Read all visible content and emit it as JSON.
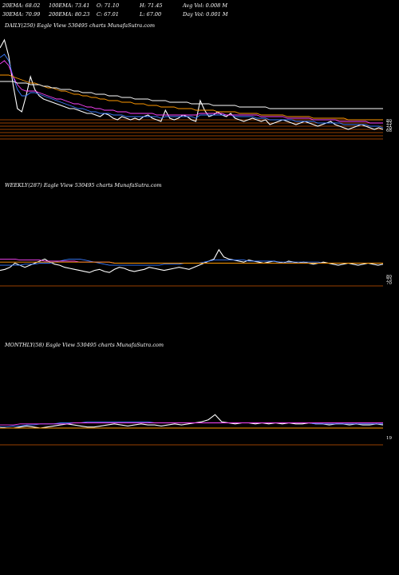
{
  "header": {
    "col1": [
      "20EMA: 68.02",
      "30EMA: 70.99"
    ],
    "col2": [
      "100EMA: 73.41",
      "200EMA: 80.23"
    ],
    "col3": [
      "O: 71.10",
      "C: 67.01"
    ],
    "col4": [
      "H: 71.45",
      "L: 67.00"
    ],
    "col5": [
      "Avg Vol: 0.008 M",
      "Day Vol: 0.001 M"
    ]
  },
  "panels": [
    {
      "id": "daily",
      "title": "DAILY(250) Eagle   View  530495 charts MunafaSutra.com"
    },
    {
      "id": "weekly",
      "title": "WEEKLY(287) Eagle   View  530495 charts MunafaSutra.com"
    },
    {
      "id": "monthly",
      "title": "MONTHLY(58) Eagle   View  530495 charts MunafaSutra.com"
    }
  ],
  "chart_data": [
    {
      "type": "line",
      "name": "DAILY(250)",
      "series": [
        {
          "key": "price",
          "color": "#ffffff",
          "values": [
            118,
            123,
            113,
            95,
            80,
            78,
            88,
            100,
            92,
            88,
            86,
            85,
            84,
            83,
            82,
            81,
            80,
            80,
            79,
            78,
            77,
            77,
            76,
            75,
            77,
            76,
            74,
            73,
            75,
            74,
            73,
            74,
            73,
            75,
            76,
            74,
            73,
            72,
            79,
            74,
            73,
            74,
            76,
            75,
            73,
            72,
            85,
            79,
            75,
            76,
            78,
            76,
            75,
            77,
            74,
            73,
            72,
            73,
            74,
            73,
            72,
            73,
            70,
            71,
            72,
            73,
            72,
            71,
            70,
            71,
            72,
            71,
            70,
            69,
            70,
            71,
            72,
            70,
            69,
            68,
            67,
            68,
            69,
            70,
            69,
            68,
            67,
            68,
            67
          ]
        },
        {
          "key": "ema20",
          "color": "#3a7bff",
          "values": [
            112,
            114,
            110,
            100,
            92,
            88,
            88,
            90,
            90,
            89,
            88,
            87,
            86,
            85,
            84,
            83,
            82,
            81,
            80,
            80,
            79,
            78,
            78,
            77,
            77,
            77,
            76,
            76,
            76,
            75,
            75,
            75,
            75,
            75,
            75,
            75,
            75,
            74,
            75,
            75,
            75,
            75,
            75,
            75,
            75,
            74,
            76,
            76,
            76,
            76,
            76,
            76,
            76,
            76,
            75,
            75,
            75,
            75,
            75,
            74,
            74,
            74,
            73,
            73,
            73,
            73,
            73,
            73,
            72,
            72,
            72,
            72,
            72,
            71,
            71,
            71,
            71,
            71,
            71,
            70,
            70,
            70,
            70,
            70,
            70,
            69,
            69,
            69,
            68
          ]
        },
        {
          "key": "ema30",
          "color": "#ff44ff",
          "values": [
            108,
            110,
            107,
            100,
            95,
            92,
            91,
            91,
            91,
            90,
            89,
            88,
            87,
            86,
            86,
            85,
            84,
            83,
            83,
            82,
            81,
            81,
            80,
            80,
            79,
            79,
            79,
            78,
            78,
            78,
            77,
            77,
            77,
            77,
            77,
            77,
            76,
            76,
            76,
            76,
            76,
            76,
            76,
            76,
            76,
            76,
            77,
            77,
            77,
            77,
            77,
            77,
            76,
            76,
            76,
            76,
            76,
            76,
            76,
            76,
            75,
            75,
            75,
            75,
            75,
            75,
            74,
            74,
            74,
            74,
            74,
            74,
            73,
            73,
            73,
            73,
            73,
            73,
            72,
            72,
            72,
            72,
            72,
            72,
            72,
            71,
            71,
            71,
            71
          ]
        },
        {
          "key": "ema100",
          "color": "#ff9900",
          "values": [
            101,
            101,
            101,
            100,
            99,
            98,
            97,
            96,
            96,
            95,
            94,
            93,
            93,
            92,
            91,
            91,
            90,
            89,
            89,
            88,
            88,
            87,
            87,
            86,
            86,
            85,
            85,
            85,
            84,
            84,
            84,
            83,
            83,
            83,
            82,
            82,
            82,
            81,
            81,
            81,
            81,
            80,
            80,
            80,
            80,
            79,
            79,
            79,
            79,
            79,
            78,
            78,
            78,
            78,
            78,
            77,
            77,
            77,
            77,
            77,
            76,
            76,
            76,
            76,
            76,
            76,
            75,
            75,
            75,
            75,
            75,
            75,
            74,
            74,
            74,
            74,
            74,
            74,
            74,
            74,
            73,
            73,
            73,
            73,
            73,
            73,
            73,
            73,
            73
          ]
        },
        {
          "key": "ema200",
          "color": "#ffffff",
          "values": [
            97,
            97,
            97,
            97,
            96,
            96,
            96,
            95,
            95,
            95,
            94,
            94,
            93,
            93,
            92,
            92,
            92,
            91,
            91,
            90,
            90,
            90,
            89,
            89,
            89,
            88,
            88,
            88,
            87,
            87,
            87,
            86,
            86,
            86,
            86,
            85,
            85,
            85,
            85,
            84,
            84,
            84,
            84,
            84,
            83,
            83,
            83,
            83,
            83,
            82,
            82,
            82,
            82,
            82,
            82,
            81,
            81,
            81,
            81,
            81,
            81,
            81,
            80,
            80,
            80,
            80,
            80,
            80,
            80,
            80,
            80,
            80,
            80,
            80,
            80,
            80,
            80,
            80,
            80,
            80,
            80,
            80,
            80,
            80,
            80,
            80,
            80,
            80,
            80
          ]
        }
      ],
      "hlines": [
        71.45,
        67.0,
        73.41,
        70.99,
        68.02,
        80.23
      ],
      "tick_labels": [
        "80",
        "73",
        "71",
        "70",
        "68"
      ],
      "ylim": [
        60,
        125
      ]
    },
    {
      "type": "line",
      "name": "WEEKLY(287)",
      "series": [
        {
          "key": "price",
          "color": "#ffffff",
          "values": [
            55,
            56,
            58,
            62,
            60,
            58,
            60,
            62,
            64,
            66,
            63,
            61,
            60,
            58,
            57,
            56,
            55,
            54,
            53,
            55,
            56,
            54,
            53,
            56,
            58,
            57,
            55,
            54,
            55,
            56,
            58,
            57,
            56,
            55,
            56,
            57,
            58,
            57,
            56,
            58,
            60,
            62,
            64,
            66,
            75,
            68,
            66,
            65,
            64,
            63,
            65,
            64,
            63,
            62,
            63,
            64,
            63,
            62,
            64,
            63,
            62,
            63,
            62,
            61,
            62,
            63,
            62,
            61,
            60,
            61,
            62,
            61,
            60,
            61,
            62,
            61,
            60,
            61
          ]
        },
        {
          "key": "ema20",
          "color": "#3a7bff",
          "values": [
            60,
            60,
            60,
            60,
            60,
            61,
            61,
            61,
            62,
            62,
            62,
            63,
            64,
            65,
            66,
            66,
            66,
            65,
            64,
            63,
            62,
            61,
            60,
            60,
            60,
            60,
            60,
            60,
            60,
            60,
            60,
            60,
            60,
            61,
            61,
            61,
            61,
            62,
            62,
            62,
            62,
            63,
            64,
            65,
            65,
            65,
            65,
            65,
            65,
            65,
            64,
            64,
            64,
            64,
            64,
            64,
            63,
            63,
            63,
            63,
            63,
            63,
            63,
            63,
            63,
            62,
            62,
            62,
            62,
            62,
            62,
            62,
            62,
            62,
            62,
            62,
            62,
            62
          ]
        },
        {
          "key": "ema30",
          "color": "#ff44ff",
          "values": [
            66,
            66,
            66,
            66,
            65,
            65,
            65,
            65,
            65,
            64,
            64,
            64,
            64,
            64,
            64,
            64,
            63,
            63,
            63,
            63,
            63,
            63,
            63,
            62,
            62,
            62,
            62,
            62,
            62,
            62,
            62,
            62,
            62,
            62,
            62,
            62,
            62,
            62,
            62,
            62,
            62,
            62,
            62,
            62,
            62,
            62,
            62,
            62,
            62,
            62,
            62,
            62,
            62,
            62,
            62,
            62,
            62,
            62,
            62,
            62,
            62,
            62,
            62,
            62,
            62,
            62,
            62,
            62,
            62,
            62,
            62,
            62,
            62,
            62,
            62,
            62,
            62,
            62
          ]
        },
        {
          "key": "ema100",
          "color": "#ff9900",
          "values": [
            63,
            63,
            63,
            63,
            63,
            63,
            63,
            63,
            63,
            63,
            63,
            63,
            63,
            63,
            63,
            63,
            63,
            63,
            63,
            63,
            63,
            63,
            63,
            62,
            62,
            62,
            62,
            62,
            62,
            62,
            62,
            62,
            62,
            62,
            62,
            62,
            62,
            62,
            62,
            62,
            62,
            62,
            62,
            62,
            62,
            62,
            62,
            62,
            62,
            62,
            62,
            62,
            62,
            62,
            62,
            62,
            62,
            62,
            62,
            62,
            62,
            62,
            62,
            62,
            62,
            62,
            62,
            62,
            62,
            62,
            62,
            62,
            62,
            62,
            62,
            62,
            62,
            62
          ]
        }
      ],
      "tick_labels": [
        "80",
        "73",
        "70"
      ],
      "ylim": [
        40,
        125
      ]
    },
    {
      "type": "line",
      "name": "MONTHLY(58)",
      "series": [
        {
          "key": "price",
          "color": "#ffffff",
          "values": [
            58,
            57,
            57,
            58,
            59,
            58,
            57,
            58,
            59,
            60,
            61,
            60,
            59,
            58,
            58,
            59,
            60,
            61,
            60,
            59,
            60,
            61,
            60,
            60,
            59,
            60,
            61,
            60,
            61,
            62,
            63,
            65,
            70,
            63,
            62,
            61,
            62,
            62,
            61,
            62,
            61,
            62,
            61,
            62,
            61,
            61,
            62,
            61,
            61,
            60,
            61,
            61,
            60,
            61,
            60,
            60,
            61,
            60
          ]
        },
        {
          "key": "ema20",
          "color": "#3a7bff",
          "values": [
            58,
            58,
            59,
            59,
            60,
            60,
            61,
            61,
            61,
            62,
            62,
            62,
            62,
            63,
            63,
            63,
            63,
            63,
            63,
            63,
            63,
            63,
            63,
            62,
            62,
            62,
            62,
            62,
            62,
            62,
            62,
            62,
            62,
            62,
            62,
            62,
            62,
            62,
            62,
            62,
            62,
            62,
            62,
            62,
            62,
            62,
            62,
            61,
            61,
            61,
            61,
            61,
            61,
            61,
            61,
            61,
            61,
            61
          ]
        },
        {
          "key": "ema30",
          "color": "#ff44ff",
          "values": [
            60,
            60,
            60,
            61,
            61,
            61,
            61,
            61,
            61,
            61,
            61,
            62,
            62,
            62,
            62,
            62,
            62,
            62,
            62,
            62,
            62,
            62,
            62,
            62,
            62,
            62,
            62,
            62,
            62,
            62,
            62,
            62,
            62,
            62,
            62,
            62,
            62,
            62,
            62,
            62,
            62,
            62,
            62,
            62,
            62,
            62,
            62,
            62,
            62,
            62,
            62,
            62,
            62,
            62,
            62,
            62,
            62,
            62
          ]
        },
        {
          "key": "ema100",
          "color": "#ff9900",
          "values": [
            57,
            57,
            57,
            57,
            57,
            57,
            57,
            57,
            57,
            57,
            57,
            57,
            57,
            57,
            57,
            57,
            57,
            57,
            57,
            57,
            57,
            57,
            57,
            57,
            57,
            57,
            57,
            57,
            57,
            57,
            57,
            57,
            57,
            57,
            57,
            57,
            57,
            57,
            57,
            57,
            57,
            57,
            57,
            57,
            57,
            57,
            57,
            57,
            57,
            57,
            57,
            57,
            57,
            57,
            57,
            57,
            57,
            57
          ]
        }
      ],
      "tick_labels": [
        "19"
      ],
      "ylim": [
        40,
        125
      ]
    }
  ]
}
